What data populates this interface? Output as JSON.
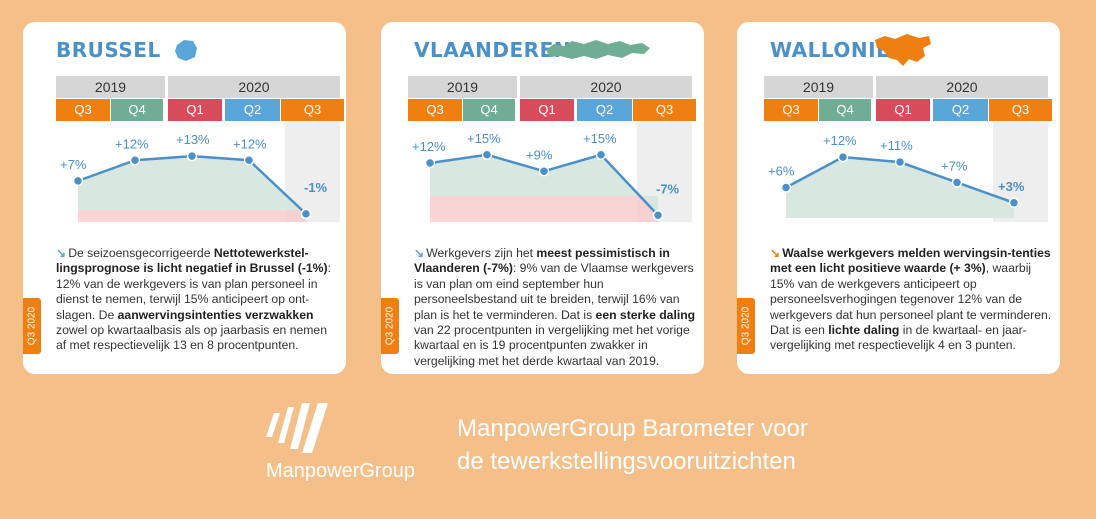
{
  "colors": {
    "q3": "#f07f12",
    "q4": "#6fae95",
    "q1": "#d84b5b",
    "q2": "#5aa6d8",
    "accent_blue": "#4a90c9",
    "background": "#f5bf8a"
  },
  "chart_data": [
    {
      "type": "area",
      "title": "BRUSSEL",
      "years": [
        "2019",
        "2020"
      ],
      "categories": [
        "Q3",
        "Q4",
        "Q1",
        "Q2",
        "Q3"
      ],
      "values": [
        7,
        12,
        13,
        12,
        -1
      ],
      "labels": [
        "+7%",
        "+12%",
        "+13%",
        "+12%",
        "-1%"
      ],
      "ylim": [
        -2,
        14
      ]
    },
    {
      "type": "area",
      "title": "VLAANDEREN",
      "years": [
        "2019",
        "2020"
      ],
      "categories": [
        "Q3",
        "Q4",
        "Q1",
        "Q2",
        "Q3"
      ],
      "values": [
        12,
        15,
        9,
        15,
        -7
      ],
      "labels": [
        "+12%",
        "+15%",
        "+9%",
        "+15%",
        "-7%"
      ],
      "ylim": [
        -8,
        16
      ]
    },
    {
      "type": "area",
      "title": "WALLONIË",
      "years": [
        "2019",
        "2020"
      ],
      "categories": [
        "Q3",
        "Q4",
        "Q1",
        "Q2",
        "Q3"
      ],
      "values": [
        6,
        12,
        11,
        7,
        3
      ],
      "labels": [
        "+6%",
        "+12%",
        "+11%",
        "+7%",
        "+3%"
      ],
      "ylim": [
        0,
        13
      ]
    }
  ],
  "cards": [
    {
      "title": "BRUSSEL",
      "side": "Q3 2020",
      "text": [
        {
          "t": "De seizoensgecorrigeerde ",
          "b": false
        },
        {
          "t": "Nettotewerkstel-lingsprognose is licht negatief in Brussel (-1%)",
          "b": true
        },
        {
          "t": ": 12% van de werkgevers is van plan personeel in dienst te nemen, terwijl 15% anticipeert op ont-slagen. De ",
          "b": false
        },
        {
          "t": "aanwervingsintenties verzwakken",
          "b": true
        },
        {
          "t": " zowel op kwartaalbasis als op jaarbasis en nemen af met respectievelijk 13 en 8 procentpunten.",
          "b": false
        }
      ]
    },
    {
      "title": "VLAANDEREN",
      "side": "Q3 2020",
      "text": [
        {
          "t": "Werkgevers zijn het ",
          "b": false
        },
        {
          "t": "meest pessimistisch in Vlaanderen (-7%)",
          "b": true
        },
        {
          "t": ": 9% van de Vlaamse werkgevers is van plan om eind september hun personeelsbestand uit te breiden, terwijl 16% van plan is het te verminderen. Dat is ",
          "b": false
        },
        {
          "t": "een sterke daling",
          "b": true
        },
        {
          "t": " van 22 procentpunten in vergelijking met het vorige kwartaal en is 19 procentpunten zwakker in vergelijking met het derde kwartaal van 2019.",
          "b": false
        }
      ]
    },
    {
      "title": "WALLONIË",
      "side": "Q3 2020",
      "text": [
        {
          "t": "Waalse werkgevers melden wervingsin-tenties met een licht positieve waarde (+ 3%)",
          "b": true
        },
        {
          "t": ", waarbij 15% van de werkgevers anticipeert op personeelsverhogingen tegenover 12% van de werkgevers dat hun personeel plant te verminderen. Dat is een ",
          "b": false
        },
        {
          "t": "lichte daling",
          "b": true
        },
        {
          "t": " in de kwartaal- en jaar-vergelijking met respectievelijk 4 en 3 punten.",
          "b": false
        }
      ]
    }
  ],
  "footer": {
    "brand": "ManpowerGroup",
    "tagline_line1": "ManpowerGroup Barometer voor",
    "tagline_line2": "de tewerkstellingsvooruitzichten"
  }
}
